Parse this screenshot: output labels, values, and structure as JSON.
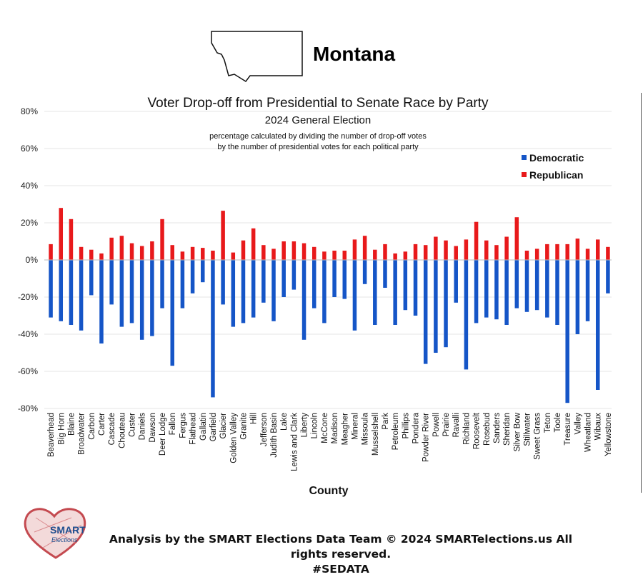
{
  "state": {
    "name": "Montana"
  },
  "footer": {
    "line1": "Analysis by the SMART Elections Data Team © 2024 SMARTelections.us All rights reserved.",
    "line2": "#SEDATA"
  },
  "logo": {
    "line1": "SMART",
    "line2": "Elections"
  },
  "chart_data": {
    "type": "bar",
    "title": "Voter Drop-off from Presidential to Senate Race by Party",
    "subtitle": "2024 General Election",
    "note_line1": "percentage calculated by dividing the number of drop-off votes",
    "note_line2": "by the number of presidential votes for each political party",
    "xlabel": "County",
    "ylabel": "",
    "ylim": [
      -80,
      80
    ],
    "yticks": [
      80,
      60,
      40,
      20,
      0,
      -20,
      -40,
      -60,
      -80
    ],
    "ytick_labels": [
      "80%",
      "60%",
      "40%",
      "20%",
      "0%",
      "-20%",
      "-40%",
      "-60%",
      "-80%"
    ],
    "grid": true,
    "legend_position": "top-right",
    "categories": [
      "Beaverhead",
      "Big Horn",
      "Blaine",
      "Broadwater",
      "Carbon",
      "Carter",
      "Cascade",
      "Chouteau",
      "Custer",
      "Daniels",
      "Dawson",
      "Deer Lodge",
      "Fallon",
      "Fergus",
      "Flathead",
      "Gallatin",
      "Garfield",
      "Glacier",
      "Golden Valley",
      "Granite",
      "Hill",
      "Jefferson",
      "Judith Basin",
      "Lake",
      "Lewis and Clark",
      "Liberty",
      "Lincoln",
      "McCone",
      "Madison",
      "Meagher",
      "Mineral",
      "Missoula",
      "Musselshell",
      "Park",
      "Petroleum",
      "Phillips",
      "Pondera",
      "Powder River",
      "Powell",
      "Prairie",
      "Ravalli",
      "Richland",
      "Roosevelt",
      "Rosebud",
      "Sanders",
      "Sheridan",
      "Silver Bow",
      "Stillwater",
      "Sweet Grass",
      "Teton",
      "Toole",
      "Treasure",
      "Valley",
      "Wheatland",
      "Wibaux",
      "Yellowstone"
    ],
    "series": [
      {
        "name": "Democratic",
        "color": "#1555c7",
        "values": [
          -31,
          -33,
          -35,
          -38,
          -19,
          -45,
          -24,
          -36,
          -34,
          -43,
          -41,
          -26,
          -57,
          -26,
          -18,
          -12,
          -74,
          -24,
          -36,
          -34,
          -31,
          -23,
          -33,
          -20,
          -16,
          -43,
          -26,
          -34,
          -20,
          -21,
          -38,
          -13,
          -35,
          -15,
          -35,
          -27,
          -30,
          -56,
          -50,
          -47,
          -23,
          -59,
          -34,
          -31,
          -32,
          -35,
          -26,
          -28,
          -27,
          -31,
          -35,
          -77,
          -40,
          -33,
          -70,
          -18
        ]
      },
      {
        "name": "Republican",
        "color": "#e8191b",
        "values": [
          8.5,
          28,
          22,
          7,
          5.5,
          3.5,
          12,
          13,
          9,
          7.5,
          10,
          22,
          8,
          4.5,
          7,
          6.5,
          5,
          26.5,
          4,
          10.5,
          17,
          8,
          6,
          10,
          10,
          9,
          7,
          4.5,
          5,
          5,
          11,
          13,
          5.5,
          8.5,
          3.5,
          4.5,
          8.5,
          8,
          12.5,
          10.5,
          7.5,
          11,
          20.5,
          10.5,
          8,
          12.5,
          23,
          5,
          6,
          8.5,
          8.5,
          8.5,
          11.5,
          6,
          11,
          7
        ]
      }
    ]
  }
}
